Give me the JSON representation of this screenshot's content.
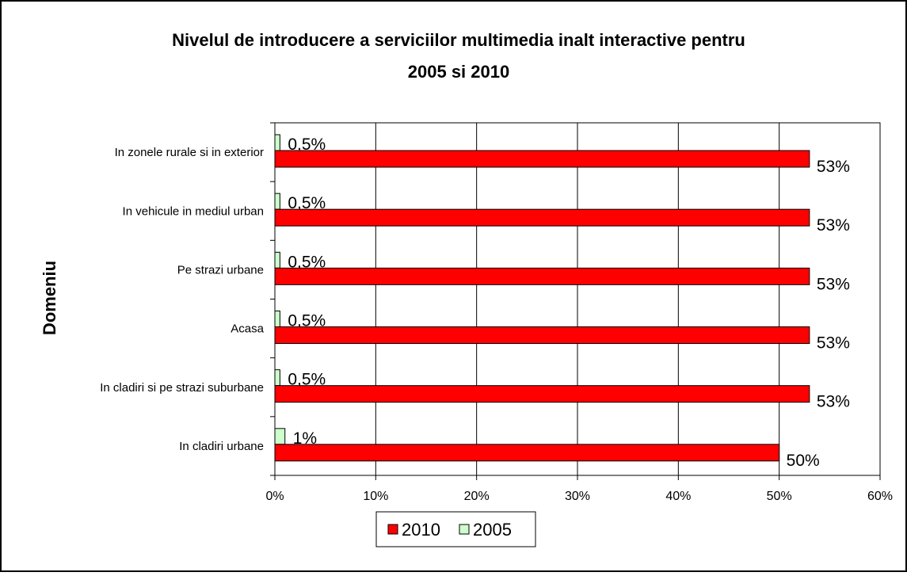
{
  "chart_data": {
    "type": "bar",
    "orientation": "horizontal",
    "title": "Nivelul de introducere a serviciilor multimedia inalt interactive pentru",
    "subtitle": "2005 si 2010",
    "xlabel": "",
    "ylabel": "Domeniu",
    "xlim": [
      0,
      60
    ],
    "x_ticks": [
      "0%",
      "10%",
      "20%",
      "30%",
      "40%",
      "50%",
      "60%"
    ],
    "grid": true,
    "legend_position": "bottom",
    "categories": [
      "In zonele rurale si in exterior",
      "In vehicule in mediul urban",
      "Pe strazi urbane",
      "Acasa",
      "In cladiri si pe strazi suburbane",
      "In cladiri urbane"
    ],
    "series": [
      {
        "name": "2010",
        "color": "#ff0000",
        "values": [
          53,
          53,
          53,
          53,
          53,
          50
        ],
        "labels": [
          "53%",
          "53%",
          "53%",
          "53%",
          "53%",
          "50%"
        ]
      },
      {
        "name": "2005",
        "color": "#ccffcc",
        "values": [
          0.5,
          0.5,
          0.5,
          0.5,
          0.5,
          1
        ],
        "labels": [
          "0,5%",
          "0,5%",
          "0,5%",
          "0,5%",
          "0,5%",
          "1%"
        ]
      }
    ]
  }
}
